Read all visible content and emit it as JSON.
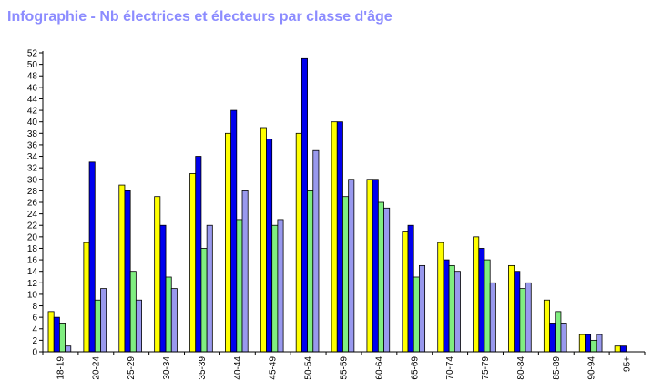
{
  "chart_data": {
    "type": "bar",
    "title": "Infographie - Nb électrices et électeurs par classe d'âge",
    "xlabel": "",
    "ylabel": "",
    "ylim": [
      0,
      52
    ],
    "ytick_step": 2,
    "grid": false,
    "legend": "none",
    "categories": [
      "18-19",
      "20-24",
      "25-29",
      "30-34",
      "35-39",
      "40-44",
      "45-49",
      "50-54",
      "55-59",
      "60-64",
      "65-69",
      "70-74",
      "75-79",
      "80-84",
      "85-89",
      "90-94",
      "95+"
    ],
    "series": [
      {
        "color": "#ffff00",
        "values": [
          7,
          19,
          29,
          27,
          31,
          38,
          39,
          38,
          40,
          30,
          21,
          19,
          20,
          15,
          9,
          3,
          1
        ]
      },
      {
        "color": "#0000ee",
        "values": [
          6,
          33,
          28,
          22,
          34,
          42,
          37,
          51,
          40,
          30,
          22,
          16,
          18,
          14,
          5,
          3,
          1
        ]
      },
      {
        "color": "#80ee80",
        "values": [
          5,
          9,
          14,
          13,
          18,
          23,
          22,
          28,
          27,
          26,
          13,
          15,
          16,
          11,
          7,
          2,
          0
        ]
      },
      {
        "color": "#9999ee",
        "values": [
          1,
          11,
          9,
          11,
          22,
          28,
          23,
          35,
          30,
          25,
          15,
          14,
          12,
          12,
          5,
          3,
          0
        ]
      }
    ]
  }
}
